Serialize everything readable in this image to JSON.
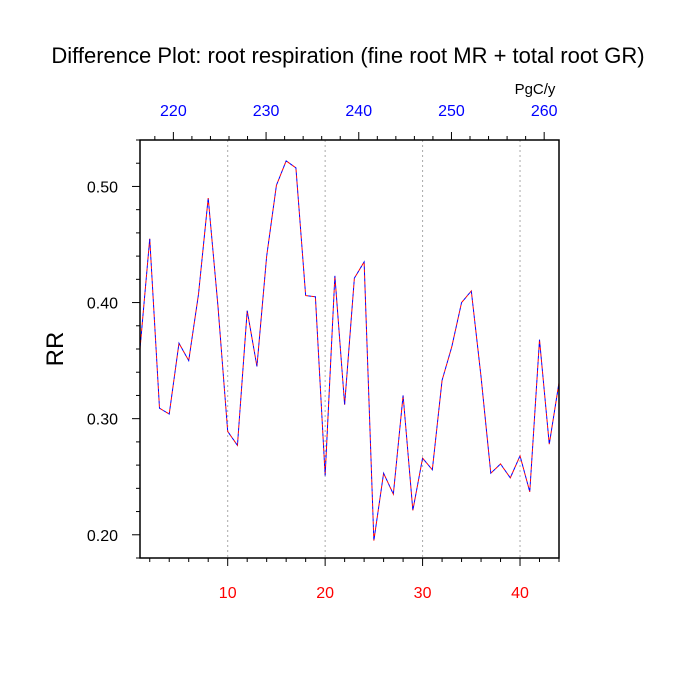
{
  "chart_data": {
    "type": "line",
    "title": "Difference Plot: root respiration (fine root MR + total root GR)",
    "ylabel": "RR",
    "top_axis_unit": "PgC/y",
    "xlim": [
      1,
      44
    ],
    "ylim": [
      0.18,
      0.54
    ],
    "bottom_ticks": [
      10,
      20,
      30,
      40
    ],
    "bottom_tick_labels": [
      "10",
      "20",
      "30",
      "40"
    ],
    "y_ticks": [
      0.2,
      0.3,
      0.4,
      0.5
    ],
    "y_tick_labels": [
      "0.20",
      "0.30",
      "0.40",
      "0.50"
    ],
    "top_axis_range": [
      216.4,
      261.6
    ],
    "top_ticks": [
      220,
      230,
      240,
      250,
      260
    ],
    "top_tick_labels": [
      "220",
      "230",
      "240",
      "250",
      "260"
    ],
    "grid": "vertical-dotted",
    "colors": {
      "bottom_tick_labels": "#ff0000",
      "top_tick_labels": "#0000ff",
      "series_line_1": "#ff0000",
      "series_line_2": "#0000ff",
      "grid": "#aaaaaa"
    },
    "series": [
      {
        "x": [
          1,
          2,
          3,
          4,
          5,
          6,
          7,
          8,
          9,
          10,
          11,
          12,
          13,
          14,
          15,
          16,
          17,
          18,
          19,
          20,
          21,
          22,
          23,
          24,
          25,
          26,
          27,
          28,
          29,
          30,
          31,
          32,
          33,
          34,
          35,
          36,
          37,
          38,
          39,
          40,
          41,
          42,
          43,
          44
        ],
        "values": [
          0.36,
          0.455,
          0.309,
          0.304,
          0.365,
          0.35,
          0.407,
          0.49,
          0.397,
          0.289,
          0.277,
          0.393,
          0.345,
          0.44,
          0.501,
          0.522,
          0.516,
          0.406,
          0.405,
          0.251,
          0.423,
          0.312,
          0.421,
          0.435,
          0.195,
          0.253,
          0.235,
          0.32,
          0.221,
          0.266,
          0.256,
          0.333,
          0.362,
          0.4,
          0.41,
          0.336,
          0.253,
          0.261,
          0.249,
          0.268,
          0.237,
          0.368,
          0.278,
          0.331
        ]
      }
    ]
  }
}
